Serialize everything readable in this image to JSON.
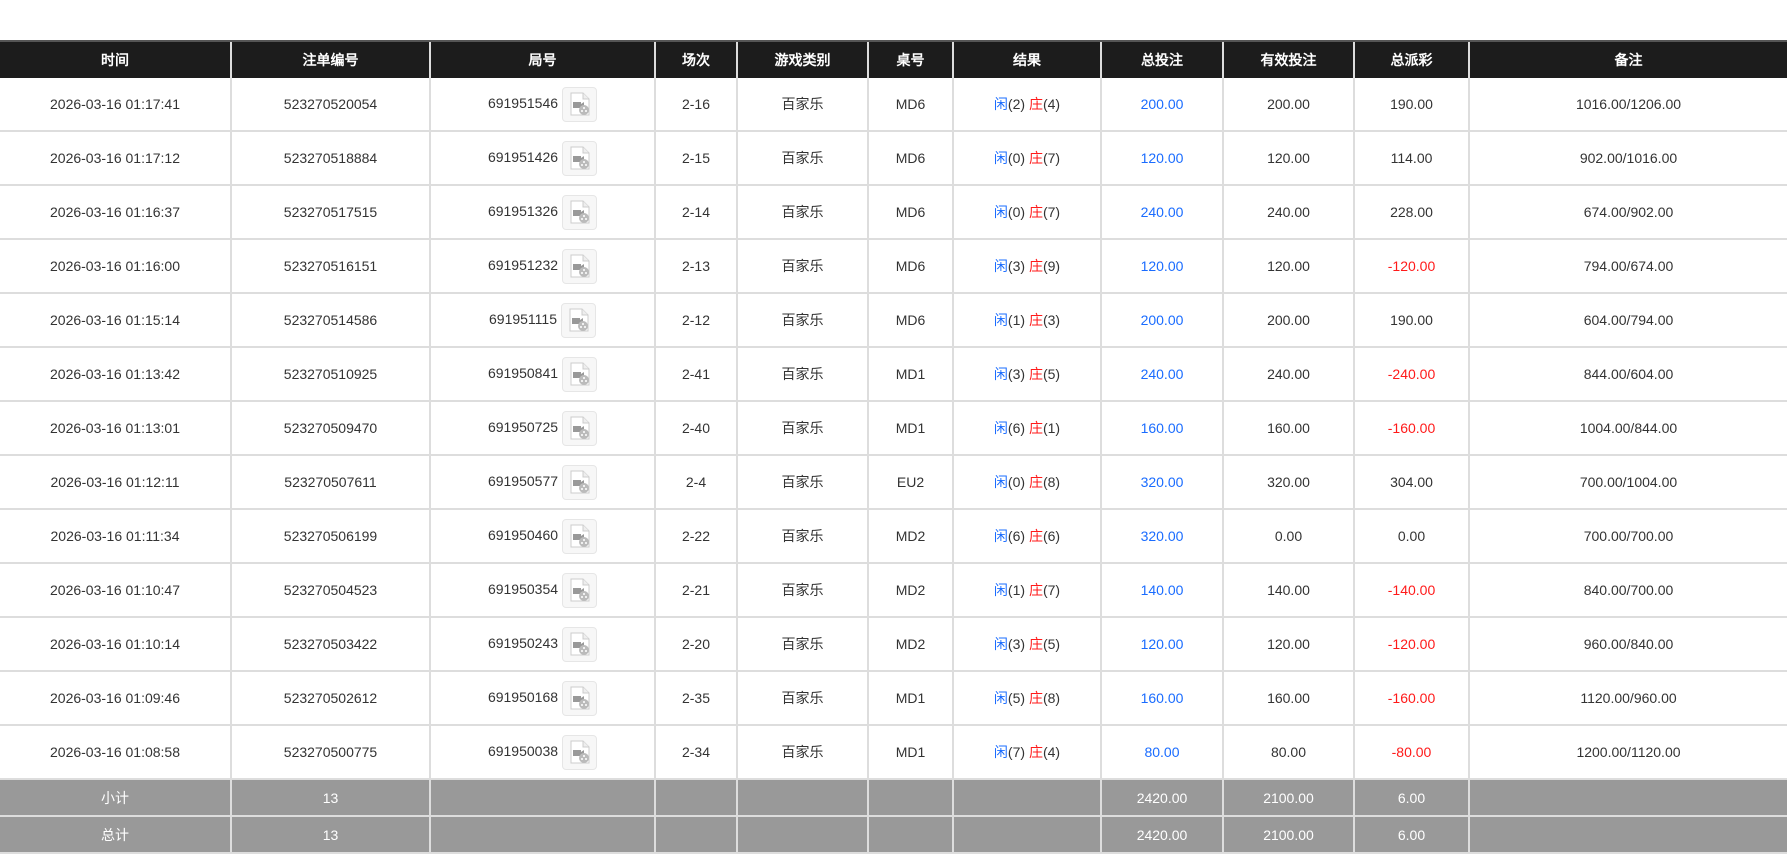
{
  "colors": {
    "header_bg": "#1c1c1c",
    "footer_bg": "#999999",
    "blue": "#1a6cff",
    "red": "#ff1a1a"
  },
  "headers": [
    "时间",
    "注单编号",
    "局号",
    "场次",
    "游戏类别",
    "桌号",
    "结果",
    "总投注",
    "有效投注",
    "总派彩",
    "备注"
  ],
  "rows": [
    {
      "time": "2026-03-16 01:17:41",
      "bet_id": "523270520054",
      "round": "691951546",
      "shoe": "2-16",
      "game": "百家乐",
      "table": "MD6",
      "player_label": "闲",
      "player": "(2)",
      "banker_label": "庄",
      "banker": "(4)",
      "total_bet": "200.00",
      "valid_bet": "200.00",
      "payout": "190.00",
      "payout_negative": false,
      "note": "1016.00/1206.00"
    },
    {
      "time": "2026-03-16 01:17:12",
      "bet_id": "523270518884",
      "round": "691951426",
      "shoe": "2-15",
      "game": "百家乐",
      "table": "MD6",
      "player_label": "闲",
      "player": "(0)",
      "banker_label": "庄",
      "banker": "(7)",
      "total_bet": "120.00",
      "valid_bet": "120.00",
      "payout": "114.00",
      "payout_negative": false,
      "note": "902.00/1016.00"
    },
    {
      "time": "2026-03-16 01:16:37",
      "bet_id": "523270517515",
      "round": "691951326",
      "shoe": "2-14",
      "game": "百家乐",
      "table": "MD6",
      "player_label": "闲",
      "player": "(0)",
      "banker_label": "庄",
      "banker": "(7)",
      "total_bet": "240.00",
      "valid_bet": "240.00",
      "payout": "228.00",
      "payout_negative": false,
      "note": "674.00/902.00"
    },
    {
      "time": "2026-03-16 01:16:00",
      "bet_id": "523270516151",
      "round": "691951232",
      "shoe": "2-13",
      "game": "百家乐",
      "table": "MD6",
      "player_label": "闲",
      "player": "(3)",
      "banker_label": "庄",
      "banker": "(9)",
      "total_bet": "120.00",
      "valid_bet": "120.00",
      "payout": "-120.00",
      "payout_negative": true,
      "note": "794.00/674.00"
    },
    {
      "time": "2026-03-16 01:15:14",
      "bet_id": "523270514586",
      "round": "691951115",
      "shoe": "2-12",
      "game": "百家乐",
      "table": "MD6",
      "player_label": "闲",
      "player": "(1)",
      "banker_label": "庄",
      "banker": "(3)",
      "total_bet": "200.00",
      "valid_bet": "200.00",
      "payout": "190.00",
      "payout_negative": false,
      "note": "604.00/794.00"
    },
    {
      "time": "2026-03-16 01:13:42",
      "bet_id": "523270510925",
      "round": "691950841",
      "shoe": "2-41",
      "game": "百家乐",
      "table": "MD1",
      "player_label": "闲",
      "player": "(3)",
      "banker_label": "庄",
      "banker": "(5)",
      "total_bet": "240.00",
      "valid_bet": "240.00",
      "payout": "-240.00",
      "payout_negative": true,
      "note": "844.00/604.00"
    },
    {
      "time": "2026-03-16 01:13:01",
      "bet_id": "523270509470",
      "round": "691950725",
      "shoe": "2-40",
      "game": "百家乐",
      "table": "MD1",
      "player_label": "闲",
      "player": "(6)",
      "banker_label": "庄",
      "banker": "(1)",
      "total_bet": "160.00",
      "valid_bet": "160.00",
      "payout": "-160.00",
      "payout_negative": true,
      "note": "1004.00/844.00"
    },
    {
      "time": "2026-03-16 01:12:11",
      "bet_id": "523270507611",
      "round": "691950577",
      "shoe": "2-4",
      "game": "百家乐",
      "table": "EU2",
      "player_label": "闲",
      "player": "(0)",
      "banker_label": "庄",
      "banker": "(8)",
      "total_bet": "320.00",
      "valid_bet": "320.00",
      "payout": "304.00",
      "payout_negative": false,
      "note": "700.00/1004.00"
    },
    {
      "time": "2026-03-16 01:11:34",
      "bet_id": "523270506199",
      "round": "691950460",
      "shoe": "2-22",
      "game": "百家乐",
      "table": "MD2",
      "player_label": "闲",
      "player": "(6)",
      "banker_label": "庄",
      "banker": "(6)",
      "total_bet": "320.00",
      "valid_bet": "0.00",
      "payout": "0.00",
      "payout_negative": false,
      "note": "700.00/700.00"
    },
    {
      "time": "2026-03-16 01:10:47",
      "bet_id": "523270504523",
      "round": "691950354",
      "shoe": "2-21",
      "game": "百家乐",
      "table": "MD2",
      "player_label": "闲",
      "player": "(1)",
      "banker_label": "庄",
      "banker": "(7)",
      "total_bet": "140.00",
      "valid_bet": "140.00",
      "payout": "-140.00",
      "payout_negative": true,
      "note": "840.00/700.00"
    },
    {
      "time": "2026-03-16 01:10:14",
      "bet_id": "523270503422",
      "round": "691950243",
      "shoe": "2-20",
      "game": "百家乐",
      "table": "MD2",
      "player_label": "闲",
      "player": "(3)",
      "banker_label": "庄",
      "banker": "(5)",
      "total_bet": "120.00",
      "valid_bet": "120.00",
      "payout": "-120.00",
      "payout_negative": true,
      "note": "960.00/840.00"
    },
    {
      "time": "2026-03-16 01:09:46",
      "bet_id": "523270502612",
      "round": "691950168",
      "shoe": "2-35",
      "game": "百家乐",
      "table": "MD1",
      "player_label": "闲",
      "player": "(5)",
      "banker_label": "庄",
      "banker": "(8)",
      "total_bet": "160.00",
      "valid_bet": "160.00",
      "payout": "-160.00",
      "payout_negative": true,
      "note": "1120.00/960.00"
    },
    {
      "time": "2026-03-16 01:08:58",
      "bet_id": "523270500775",
      "round": "691950038",
      "shoe": "2-34",
      "game": "百家乐",
      "table": "MD1",
      "player_label": "闲",
      "player": "(7)",
      "banker_label": "庄",
      "banker": "(4)",
      "total_bet": "80.00",
      "valid_bet": "80.00",
      "payout": "-80.00",
      "payout_negative": true,
      "note": "1200.00/1120.00"
    }
  ],
  "row_icon": "video-replay-icon",
  "subtotal": {
    "label": "小计",
    "count": "13",
    "total_bet": "2420.00",
    "valid_bet": "2100.00",
    "payout": "6.00"
  },
  "grand_total": {
    "label": "总计",
    "count": "13",
    "total_bet": "2420.00",
    "valid_bet": "2100.00",
    "payout": "6.00"
  }
}
